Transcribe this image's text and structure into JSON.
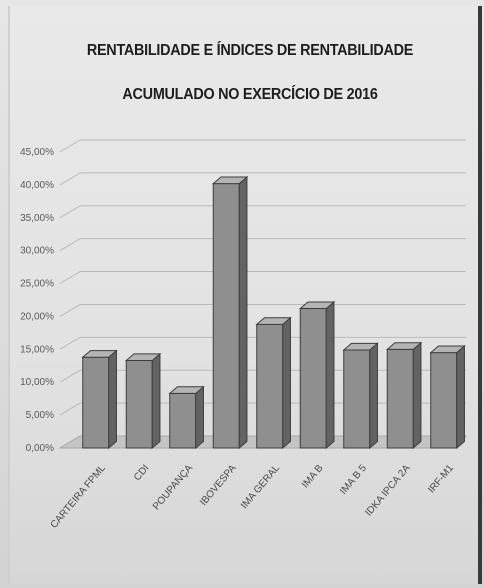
{
  "chart_data": {
    "type": "bar",
    "title_line1": "RENTABILIDADE E ÍNDICES DE RENTABILIDADE",
    "title_line2": "ACUMULADO NO EXERCÍCIO DE 2016",
    "categories": [
      "CARTEIRA FPML",
      "CDI",
      "POUPANÇA",
      "IBOVESPA",
      "IMA GERAL",
      "IMA B",
      "IMA B 5",
      "IDKA IPCA 2A",
      "IRF-M1"
    ],
    "values": [
      13.8,
      13.3,
      8.3,
      40.2,
      18.8,
      21.2,
      14.9,
      15.0,
      14.5
    ],
    "y_ticks": [
      "0,00%",
      "5,00%",
      "10,00%",
      "15,00%",
      "20,00%",
      "25,00%",
      "30,00%",
      "35,00%",
      "40,00%",
      "45,00%"
    ],
    "ylim": [
      0,
      45
    ],
    "grid": true,
    "colors": {
      "bar_front": "#8f8f8f",
      "bar_side": "#636363",
      "bar_top": "#b4b4b4",
      "grid": "#b9b9b9",
      "floor": "#c4c4c4"
    }
  }
}
